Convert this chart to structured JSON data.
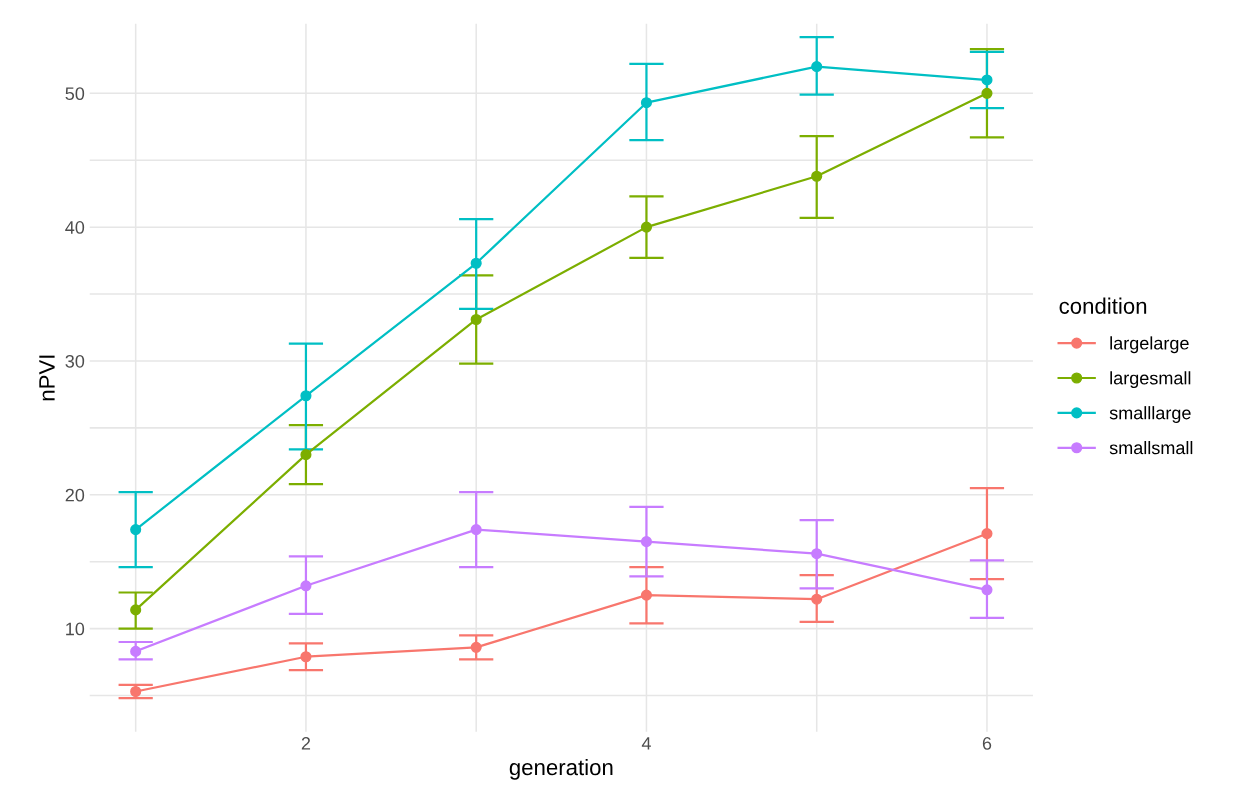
{
  "chart_data": {
    "type": "line",
    "xlabel": "generation",
    "ylabel": "nPVI",
    "legend_title": "condition",
    "x": [
      1,
      2,
      3,
      4,
      5,
      6
    ],
    "series": [
      {
        "name": "largelarge",
        "color": "#f8766d",
        "values": [
          5.3,
          7.9,
          8.6,
          12.5,
          12.2,
          17.1
        ],
        "errors": [
          [
            4.8,
            5.8
          ],
          [
            6.9,
            8.9
          ],
          [
            7.7,
            9.5
          ],
          [
            10.4,
            14.6
          ],
          [
            10.5,
            14.0
          ],
          [
            13.7,
            20.5
          ]
        ]
      },
      {
        "name": "largesmall",
        "color": "#7cae00",
        "values": [
          11.4,
          23.0,
          33.1,
          40.0,
          43.8,
          50.0
        ],
        "errors": [
          [
            10.0,
            12.7
          ],
          [
            20.8,
            25.2
          ],
          [
            29.8,
            36.4
          ],
          [
            37.7,
            42.3
          ],
          [
            40.7,
            46.8
          ],
          [
            46.7,
            53.3
          ]
        ]
      },
      {
        "name": "smalllarge",
        "color": "#00bfc4",
        "values": [
          17.4,
          27.4,
          37.3,
          49.3,
          52.0,
          51.0
        ],
        "errors": [
          [
            14.6,
            20.2
          ],
          [
            23.4,
            31.3
          ],
          [
            33.9,
            40.6
          ],
          [
            46.5,
            52.2
          ],
          [
            49.9,
            54.2
          ],
          [
            48.9,
            53.1
          ]
        ]
      },
      {
        "name": "smallsmall",
        "color": "#c77cff",
        "values": [
          8.3,
          13.2,
          17.4,
          16.5,
          15.6,
          12.9
        ],
        "errors": [
          [
            7.7,
            9.0
          ],
          [
            11.1,
            15.4
          ],
          [
            14.6,
            20.2
          ],
          [
            13.9,
            19.1
          ],
          [
            13.0,
            18.1
          ],
          [
            10.8,
            15.1
          ]
        ]
      }
    ],
    "xlim": [
      0.73,
      6.27
    ],
    "ylim": [
      2.3,
      55.2
    ],
    "xticks": [
      {
        "value": 1,
        "label": null
      },
      2,
      {
        "value": 3,
        "label": null
      },
      4,
      {
        "value": 5,
        "label": null
      },
      6
    ],
    "yticks": [
      {
        "value": 5,
        "label": null
      },
      10,
      {
        "value": 15,
        "label": null
      },
      20,
      {
        "value": 25,
        "label": null
      },
      30,
      {
        "value": 35,
        "label": null
      },
      40,
      {
        "value": 45,
        "label": null
      },
      50
    ],
    "grid": true,
    "legend": "right",
    "marker": "circle",
    "line_style": "solid"
  }
}
